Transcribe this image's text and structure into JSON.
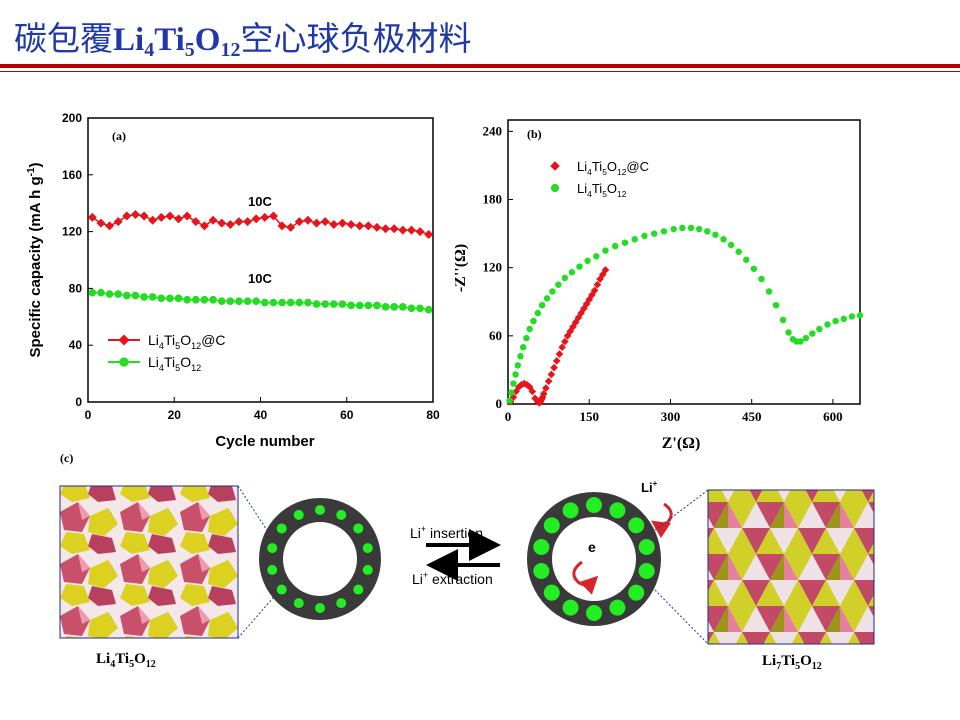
{
  "title": {
    "prefix": "碳包覆",
    "f1": "Li",
    "s1": "4",
    "f2": "Ti",
    "s2": "5",
    "f3": "O",
    "s3": "12",
    "suffix": "空心球负极材料"
  },
  "chart_data": [
    {
      "type": "line",
      "panel": "(a)",
      "xlabel": "Cycle number",
      "ylabel": "Specific capacity (mA h g",
      "ylabel_sup": "-1",
      "ylabel_end": ")",
      "xlim": [
        0,
        80
      ],
      "ylim": [
        0,
        200
      ],
      "xticks": [
        "0",
        "20",
        "40",
        "60",
        "80"
      ],
      "yticks": [
        "0",
        "40",
        "80",
        "120",
        "160",
        "200"
      ],
      "annotations": [
        "10C",
        "10C"
      ],
      "legend": "bottom-left",
      "series": [
        {
          "name": "Li4Ti5O12@C",
          "label": {
            "a": "Li",
            "b": "4",
            "c": "Ti",
            "d": "5",
            "e": "O",
            "f": "12",
            "g": "@C"
          },
          "color": "#e8141b",
          "marker": "diamond",
          "x": [
            1,
            3,
            5,
            7,
            9,
            11,
            13,
            15,
            17,
            19,
            21,
            23,
            25,
            27,
            29,
            31,
            33,
            35,
            37,
            39,
            41,
            43,
            45,
            47,
            49,
            51,
            53,
            55,
            57,
            59,
            61,
            63,
            65,
            67,
            69,
            71,
            73,
            75,
            77,
            79
          ],
          "y": [
            130,
            126,
            124,
            127,
            131,
            132,
            131,
            128,
            130,
            131,
            129,
            131,
            127,
            124,
            128,
            126,
            125,
            127,
            127,
            129,
            130,
            131,
            124,
            123,
            127,
            128,
            126,
            127,
            125,
            126,
            125,
            124,
            124,
            123,
            122,
            122,
            121,
            121,
            120,
            118
          ]
        },
        {
          "name": "Li4Ti5O12",
          "label": {
            "a": "Li",
            "b": "4",
            "c": "Ti",
            "d": "5",
            "e": "O",
            "f": "12",
            "g": ""
          },
          "color": "#22dd22",
          "marker": "circle",
          "x": [
            1,
            3,
            5,
            7,
            9,
            11,
            13,
            15,
            17,
            19,
            21,
            23,
            25,
            27,
            29,
            31,
            33,
            35,
            37,
            39,
            41,
            43,
            45,
            47,
            49,
            51,
            53,
            55,
            57,
            59,
            61,
            63,
            65,
            67,
            69,
            71,
            73,
            75,
            77,
            79
          ],
          "y": [
            77,
            77,
            76,
            76,
            75,
            75,
            74,
            74,
            73,
            73,
            73,
            72,
            72,
            72,
            72,
            71,
            71,
            71,
            71,
            71,
            70,
            70,
            70,
            70,
            70,
            70,
            69,
            69,
            69,
            69,
            68,
            68,
            68,
            68,
            67,
            67,
            67,
            66,
            66,
            65
          ]
        }
      ]
    },
    {
      "type": "scatter",
      "panel": "(b)",
      "xlabel": "Z'(Ω)",
      "ylabel": "-Z''(Ω)",
      "xlim": [
        0,
        650
      ],
      "ylim": [
        0,
        250
      ],
      "xticks": [
        "0",
        "150",
        "300",
        "450",
        "600"
      ],
      "yticks": [
        "0",
        "60",
        "120",
        "180",
        "240"
      ],
      "legend": "top-left",
      "series": [
        {
          "name": "Li4Ti5O12@C",
          "label": {
            "a": "Li",
            "b": "4",
            "c": "Ti",
            "d": "5",
            "e": "O",
            "f": "12",
            "g": "@C"
          },
          "color": "#e8141b",
          "marker": "diamond",
          "x": [
            5,
            10,
            15,
            20,
            25,
            30,
            35,
            40,
            45,
            50,
            55,
            58,
            60,
            62,
            64,
            66,
            70,
            75,
            80,
            85,
            90,
            95,
            100,
            105,
            110,
            115,
            120,
            125,
            130,
            135,
            140,
            145,
            150,
            155,
            160,
            165,
            170,
            175,
            180
          ],
          "y": [
            2,
            6,
            11,
            15,
            17,
            18,
            17,
            15,
            11,
            5,
            2,
            1,
            2,
            4,
            6,
            9,
            14,
            20,
            26,
            32,
            38,
            44,
            50,
            55,
            60,
            64,
            68,
            72,
            76,
            80,
            84,
            88,
            92,
            96,
            100,
            105,
            110,
            114,
            118
          ]
        },
        {
          "name": "Li4Ti5O12",
          "label": {
            "a": "Li",
            "b": "4",
            "c": "Ti",
            "d": "5",
            "e": "O",
            "f": "12",
            "g": ""
          },
          "color": "#22dd22",
          "marker": "circle",
          "x": [
            3,
            6,
            10,
            14,
            18,
            23,
            28,
            34,
            40,
            47,
            55,
            63,
            72,
            82,
            93,
            105,
            118,
            132,
            147,
            163,
            180,
            198,
            216,
            234,
            252,
            270,
            288,
            306,
            322,
            338,
            353,
            368,
            383,
            398,
            412,
            426,
            440,
            454,
            468,
            482,
            495,
            508,
            518,
            526,
            533,
            540,
            550,
            562,
            575,
            590,
            605,
            620,
            635,
            650
          ],
          "y": [
            3,
            10,
            18,
            26,
            34,
            42,
            50,
            58,
            66,
            73,
            80,
            87,
            93,
            99,
            105,
            111,
            116,
            121,
            126,
            130,
            135,
            139,
            142,
            145,
            148,
            150,
            152,
            154,
            155,
            155,
            154,
            152,
            149,
            145,
            140,
            134,
            127,
            119,
            110,
            99,
            87,
            74,
            63,
            57,
            55,
            55,
            58,
            62,
            66,
            70,
            73,
            75,
            77,
            78
          ]
        }
      ]
    }
  ],
  "panel_c": {
    "label": "(c)",
    "insertion": {
      "ion": "Li",
      "sup": "+",
      "text": " insertion"
    },
    "extraction": {
      "ion": "Li",
      "sup": "+",
      "text": " extraction"
    },
    "li_ion": {
      "ion": "Li",
      "sup": "+"
    },
    "electron": "e",
    "cap_left": {
      "a": "Li",
      "b": "4",
      "c": "Ti",
      "d": "5",
      "e": "O",
      "f": "12"
    },
    "cap_right": {
      "a": "Li",
      "b": "7",
      "c": "Ti",
      "d": "5",
      "e": "O",
      "f": "12"
    }
  }
}
